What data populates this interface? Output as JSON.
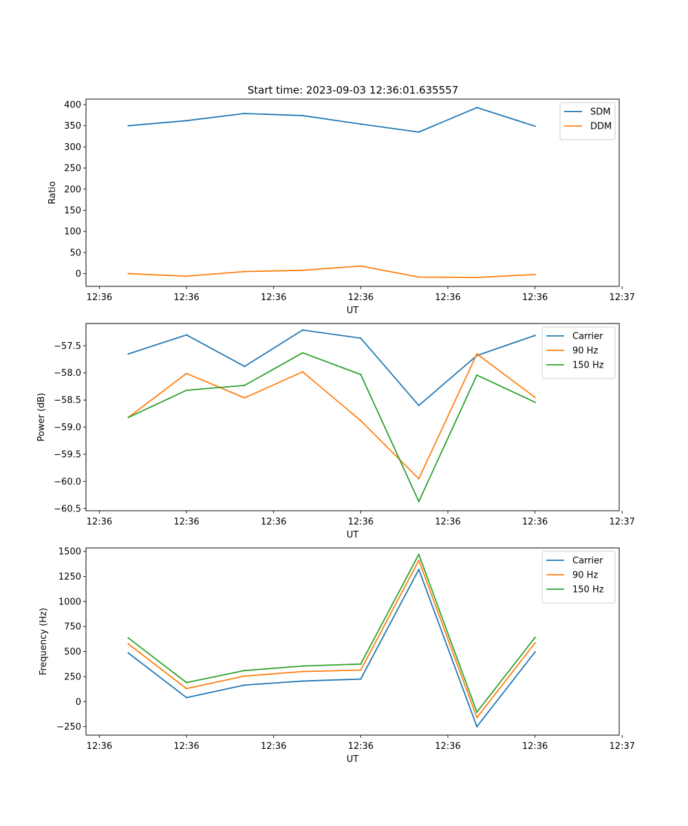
{
  "figure_title": "Start time: 2023-09-03 12:36:01.635557",
  "colors": {
    "blue": "#1f77b4",
    "orange": "#ff7f0e",
    "green": "#2ca02c"
  },
  "chart_data": [
    {
      "type": "line",
      "title": "Start time: 2023-09-03 12:36:01.635557",
      "xlabel": "UT",
      "ylabel": "Ratio",
      "x": [
        1,
        2,
        3,
        4,
        5,
        6,
        7,
        8
      ],
      "xlim": [
        0.27,
        9.45
      ],
      "x_ticks": [
        0.5,
        2.0,
        3.5,
        5.0,
        6.5,
        8.0,
        9.5
      ],
      "x_tick_labels": [
        "12:36",
        "12:36",
        "12:36",
        "12:36",
        "12:36",
        "12:36",
        "12:37"
      ],
      "ylim": [
        -30,
        413
      ],
      "y_ticks": [
        0,
        50,
        100,
        150,
        200,
        250,
        300,
        350,
        400
      ],
      "y_tick_labels": [
        "0",
        "50",
        "100",
        "150",
        "200",
        "250",
        "300",
        "350",
        "400"
      ],
      "legend_loc": "upper right",
      "series": [
        {
          "name": "SDM",
          "color": "#1f77b4",
          "values": [
            350,
            362,
            379,
            374,
            354,
            335,
            393,
            349
          ]
        },
        {
          "name": "DDM",
          "color": "#ff7f0e",
          "values": [
            0,
            -6,
            5,
            8,
            18,
            -8,
            -9,
            -2
          ]
        }
      ]
    },
    {
      "type": "line",
      "title": "",
      "xlabel": "UT",
      "ylabel": "Power (dB)",
      "x": [
        1,
        2,
        3,
        4,
        5,
        6,
        7,
        8
      ],
      "xlim": [
        0.27,
        9.45
      ],
      "x_ticks": [
        0.5,
        2.0,
        3.5,
        5.0,
        6.5,
        8.0,
        9.5
      ],
      "x_tick_labels": [
        "12:36",
        "12:36",
        "12:36",
        "12:36",
        "12:36",
        "12:36",
        "12:37"
      ],
      "ylim": [
        -60.54,
        -57.09
      ],
      "y_ticks": [
        -60.5,
        -60.0,
        -59.5,
        -59.0,
        -58.5,
        -58.0,
        -57.5
      ],
      "y_tick_labels": [
        "−60.5",
        "−60.0",
        "−59.5",
        "−59.0",
        "−58.5",
        "−58.0",
        "−57.5"
      ],
      "legend_loc": "upper right",
      "series": [
        {
          "name": "Carrier",
          "color": "#1f77b4",
          "values": [
            -57.65,
            -57.3,
            -57.88,
            -57.21,
            -57.36,
            -58.6,
            -57.68,
            -57.31
          ]
        },
        {
          "name": "90 Hz",
          "color": "#ff7f0e",
          "values": [
            -58.82,
            -58.01,
            -58.46,
            -57.98,
            -58.88,
            -59.95,
            -57.65,
            -58.45
          ]
        },
        {
          "name": "150 Hz",
          "color": "#2ca02c",
          "values": [
            -58.82,
            -58.32,
            -58.23,
            -57.63,
            -58.03,
            -60.37,
            -58.04,
            -58.54
          ]
        }
      ]
    },
    {
      "type": "line",
      "title": "",
      "xlabel": "UT",
      "ylabel": "Frequency (Hz)",
      "x": [
        1,
        2,
        3,
        4,
        5,
        6,
        7,
        8
      ],
      "xlim": [
        0.27,
        9.45
      ],
      "x_ticks": [
        0.5,
        2.0,
        3.5,
        5.0,
        6.5,
        8.0,
        9.5
      ],
      "x_tick_labels": [
        "12:36",
        "12:36",
        "12:36",
        "12:36",
        "12:36",
        "12:36",
        "12:37"
      ],
      "ylim": [
        -335,
        1535
      ],
      "y_ticks": [
        -250,
        0,
        250,
        500,
        750,
        1000,
        1250,
        1500
      ],
      "y_tick_labels": [
        "−250",
        "0",
        "250",
        "500",
        "750",
        "1000",
        "1250",
        "1500"
      ],
      "legend_loc": "upper right",
      "series": [
        {
          "name": "Carrier",
          "color": "#1f77b4",
          "values": [
            485,
            40,
            165,
            205,
            225,
            1320,
            -250,
            495
          ]
        },
        {
          "name": "90 Hz",
          "color": "#ff7f0e",
          "values": [
            575,
            130,
            255,
            300,
            315,
            1410,
            -160,
            585
          ]
        },
        {
          "name": "150 Hz",
          "color": "#2ca02c",
          "values": [
            635,
            190,
            310,
            355,
            375,
            1470,
            -105,
            640
          ]
        }
      ]
    }
  ]
}
